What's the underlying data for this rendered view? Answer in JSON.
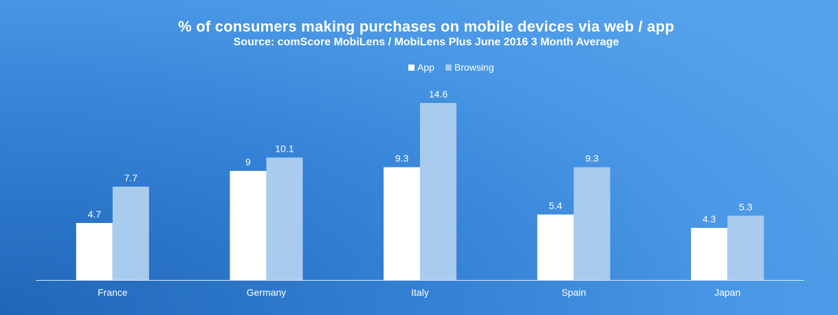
{
  "chart_data": {
    "type": "bar",
    "title": "% of consumers making purchases on mobile devices via web / app",
    "subtitle": "Source: comScore MobiLens / MobiLens Plus June 2016 3 Month Average",
    "categories": [
      "France",
      "Germany",
      "Italy",
      "Spain",
      "Japan"
    ],
    "series": [
      {
        "name": "App",
        "values": [
          4.7,
          9,
          9.3,
          5.4,
          4.3
        ],
        "color": "#ffffff"
      },
      {
        "name": "Browsing",
        "values": [
          7.7,
          10.1,
          14.6,
          9.3,
          5.3
        ],
        "color": "#a9cbee"
      }
    ],
    "ylim": [
      0,
      16
    ],
    "legend": "top",
    "grid": false,
    "xlabel": "",
    "ylabel": ""
  }
}
